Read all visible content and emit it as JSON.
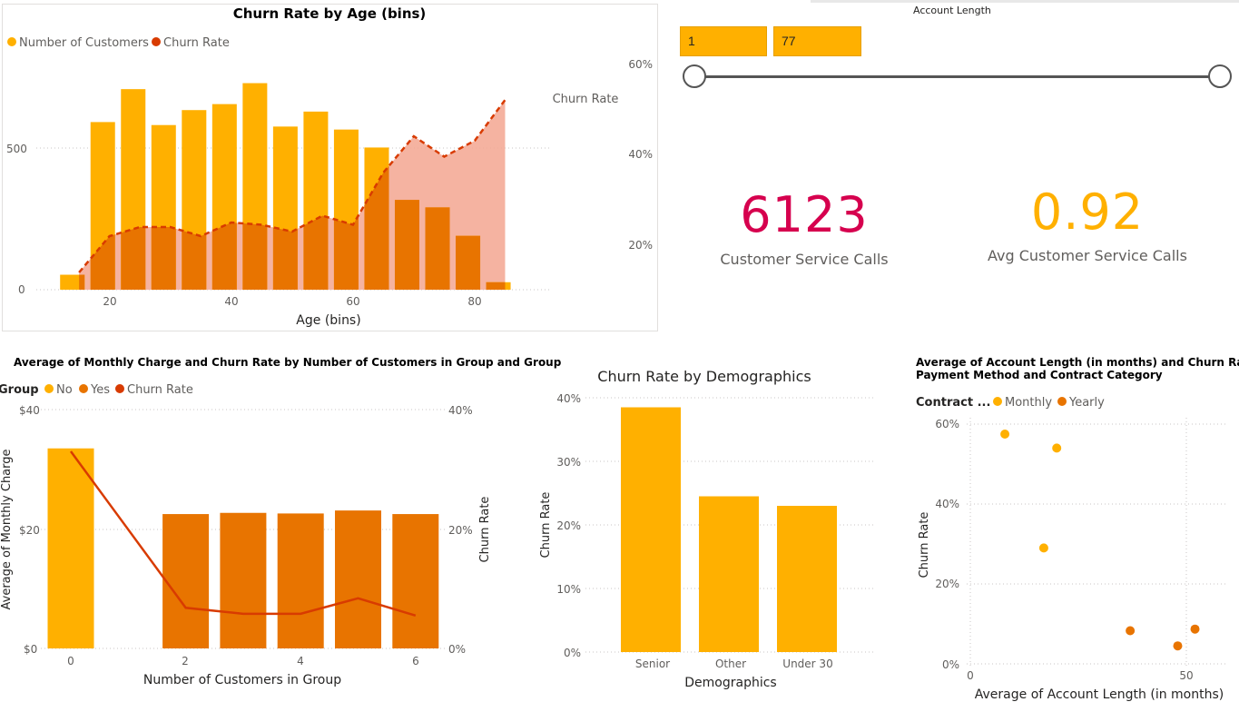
{
  "slicer": {
    "title": "Account Length",
    "min_value": "1",
    "max_value": "77"
  },
  "kpis": [
    {
      "value": "6123",
      "label": "Customer Service Calls",
      "color": "#d6004e"
    },
    {
      "value": "0.92",
      "label": "Avg Customer Service Calls",
      "color": "#ffb000"
    }
  ],
  "colors": {
    "amber": "#ffb000",
    "orange": "#e87400",
    "red": "#d83b01",
    "pink_area": "#f4ab97",
    "kpi_red": "#d6004e"
  },
  "chart_data": [
    {
      "type": "bar",
      "title": "Churn Rate by Age (bins)",
      "legend": [
        "Number of Customers",
        "Churn Rate"
      ],
      "xlabel": "Age (bins)",
      "ylabel_right": "Churn Rate",
      "x_ticks": [
        "20",
        "40",
        "60",
        "80"
      ],
      "y_ticks_left": [
        "0",
        "500"
      ],
      "y_ticks_right": [
        "20%",
        "40%",
        "60%"
      ],
      "xlim": [
        12,
        90
      ],
      "ylim_left": [
        0,
        810
      ],
      "ylim_right": [
        0.1,
        0.65
      ],
      "x": [
        13,
        18,
        23,
        28,
        33,
        38,
        43,
        48,
        53,
        58,
        63,
        68,
        73,
        78,
        83
      ],
      "customers": [
        50,
        560,
        670,
        550,
        600,
        620,
        690,
        545,
        595,
        535,
        475,
        300,
        275,
        180,
        25
      ],
      "churn_x": [
        15,
        20,
        25,
        30,
        35,
        40,
        45,
        50,
        55,
        60,
        65,
        70,
        75,
        80,
        85
      ],
      "churn_rate": [
        0.14,
        0.22,
        0.24,
        0.24,
        0.22,
        0.25,
        0.245,
        0.23,
        0.265,
        0.245,
        0.36,
        0.44,
        0.395,
        0.43,
        0.52
      ]
    },
    {
      "type": "bar",
      "title": "Average of Monthly Charge and Churn Rate by Number of Customers in Group and Group",
      "legend_title": "Group",
      "legend": [
        "No",
        "Yes",
        "Churn Rate"
      ],
      "xlabel": "Number of Customers in Group",
      "ylabel": "Average of Monthly Charge",
      "ylabel_right": "Churn Rate",
      "x_ticks": [
        "0",
        "2",
        "4",
        "6"
      ],
      "y_ticks_left": [
        "$0",
        "$20",
        "$40"
      ],
      "y_ticks_right": [
        "0%",
        "20%",
        "40%"
      ],
      "categories": [
        0,
        2,
        3,
        4,
        5,
        6
      ],
      "groups": [
        "No",
        "Yes",
        "Yes",
        "Yes",
        "Yes",
        "Yes"
      ],
      "values": [
        33.5,
        22.5,
        22.7,
        22.6,
        23.1,
        22.5
      ],
      "churn_rate": [
        0.33,
        0.068,
        0.058,
        0.058,
        0.084,
        0.055
      ],
      "ylim": [
        0,
        40
      ],
      "ylim_right": [
        0,
        0.4
      ]
    },
    {
      "type": "bar",
      "title": "Churn Rate by Demographics",
      "xlabel": "Demographics",
      "ylabel": "Churn Rate",
      "categories": [
        "Senior",
        "Other",
        "Under 30"
      ],
      "values": [
        0.385,
        0.245,
        0.23
      ],
      "y_ticks": [
        "0%",
        "10%",
        "20%",
        "30%",
        "40%"
      ],
      "ylim": [
        0,
        0.4
      ]
    },
    {
      "type": "scatter",
      "title": "Average of Account Length (in months) and Churn Rate by Payment Method and Contract Category",
      "legend_title": "Contract ...",
      "legend": [
        "Monthly",
        "Yearly"
      ],
      "xlabel": "Average of Account Length (in months)",
      "ylabel": "Churn Rate",
      "x_ticks": [
        "0",
        "50"
      ],
      "y_ticks": [
        "0%",
        "20%",
        "40%",
        "60%"
      ],
      "xlim": [
        0,
        55
      ],
      "ylim": [
        0,
        0.6
      ],
      "series": [
        {
          "name": "Monthly",
          "points": [
            [
              8,
              0.575
            ],
            [
              20,
              0.54
            ],
            [
              17,
              0.29
            ]
          ]
        },
        {
          "name": "Yearly",
          "points": [
            [
              37,
              0.083
            ],
            [
              48,
              0.045
            ],
            [
              52,
              0.087
            ]
          ]
        }
      ]
    }
  ]
}
